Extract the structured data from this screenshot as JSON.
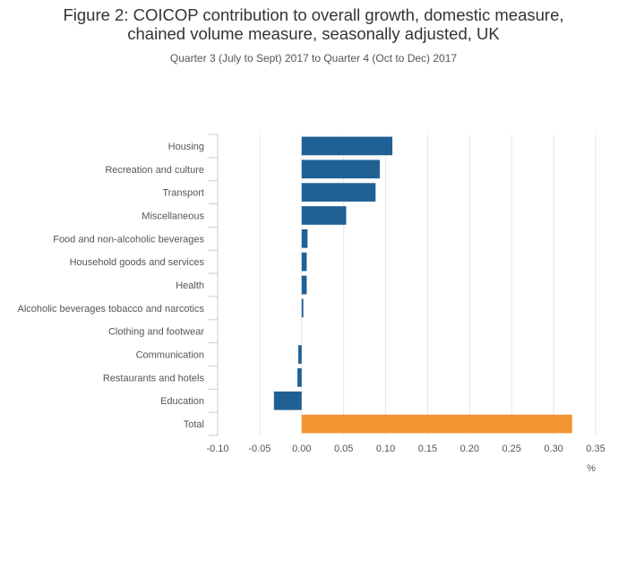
{
  "chart_data": {
    "type": "bar",
    "orientation": "horizontal",
    "title_line1": "Figure 2: COICOP contribution to overall growth, domestic measure,",
    "title_line2": "chained volume measure, seasonally adjusted, UK",
    "subtitle": "Quarter 3 (July to Sept) 2017 to Quarter 4 (Oct to Dec) 2017",
    "xlabel": "%",
    "ylabel": "",
    "xlim": [
      -0.1,
      0.35
    ],
    "ticks": [
      "-0.10",
      "-0.05",
      "0.00",
      "0.05",
      "0.10",
      "0.15",
      "0.20",
      "0.25",
      "0.30",
      "0.35"
    ],
    "tick_values": [
      -0.1,
      -0.05,
      0,
      0.05,
      0.1,
      0.15,
      0.2,
      0.25,
      0.3,
      0.35
    ],
    "grid": true,
    "categories": [
      "Housing",
      "Recreation and culture",
      "Transport",
      "Miscellaneous",
      "Food and non-alcoholic beverages",
      "Household goods and services",
      "Health",
      "Alcoholic beverages tobacco and narcotics",
      "Clothing and footwear",
      "Communication",
      "Restaurants and hotels",
      "Education",
      "Total"
    ],
    "values": [
      0.108,
      0.093,
      0.088,
      0.053,
      0.007,
      0.006,
      0.006,
      0.002,
      0.0,
      -0.004,
      -0.005,
      -0.033,
      0.322
    ],
    "colors": {
      "default": "#206095",
      "total": "#f39431"
    }
  }
}
